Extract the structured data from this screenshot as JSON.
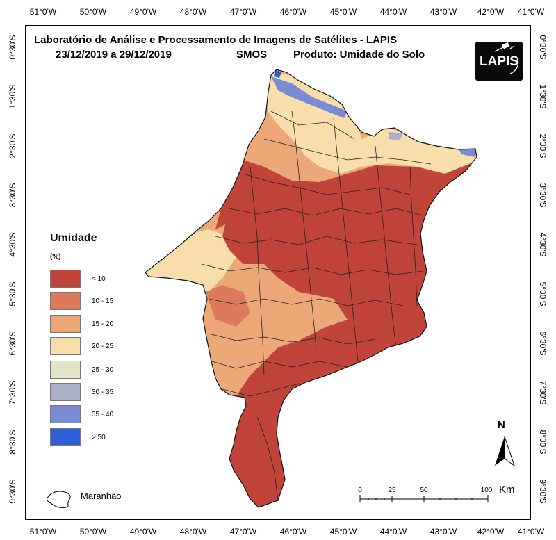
{
  "title": {
    "line1": "Laboratório de Análise e Processamento de Imagens de Satélites - LAPIS",
    "period": "23/12/2019  a  29/12/2019",
    "sensor": "SMOS",
    "product": "Produto: Umidade do Solo"
  },
  "logo": {
    "text": "LAPIS"
  },
  "axes": {
    "longitude_labels": [
      "51°0'W",
      "50°0'W",
      "49°0'W",
      "48°0'W",
      "47°0'W",
      "46°0'W",
      "45°0'W",
      "44°0'W",
      "43°0'W",
      "42°0'W",
      "41°0'W"
    ],
    "latitude_labels": [
      "0°30'S",
      "1°30'S",
      "2°30'S",
      "3°30'S",
      "4°30'S",
      "5°30'S",
      "6°30'S",
      "7°30'S",
      "8°30'S",
      "9°30'S"
    ]
  },
  "legend": {
    "title": "Umidade",
    "unit": "(%)",
    "items": [
      {
        "label": "< 10",
        "color": "#c0443a"
      },
      {
        "label": "10 - 15",
        "color": "#de7a5c"
      },
      {
        "label": "15 - 20",
        "color": "#eca877"
      },
      {
        "label": "20 - 25",
        "color": "#f7deaa"
      },
      {
        "label": "25 - 30",
        "color": "#e4e4c8"
      },
      {
        "label": "30 - 35",
        "color": "#aab0c9"
      },
      {
        "label": "35 - 40",
        "color": "#7b8bd3"
      },
      {
        "label": "> 50",
        "color": "#2f5fd6"
      }
    ]
  },
  "state_legend": {
    "label": "Maranhão"
  },
  "north_arrow": {
    "label": "N"
  },
  "scale_bar": {
    "ticks": [
      "0",
      "25",
      "50",
      "100"
    ],
    "unit": "Km"
  },
  "colors": {
    "lt10": "#c0443a",
    "c10_15": "#de7a5c",
    "c15_20": "#eca877",
    "c20_25": "#f7deaa",
    "c25_30": "#e4e4c8",
    "c30_35": "#aab0c9",
    "c35_40": "#7b8bd3",
    "gt50": "#2f5fd6"
  }
}
